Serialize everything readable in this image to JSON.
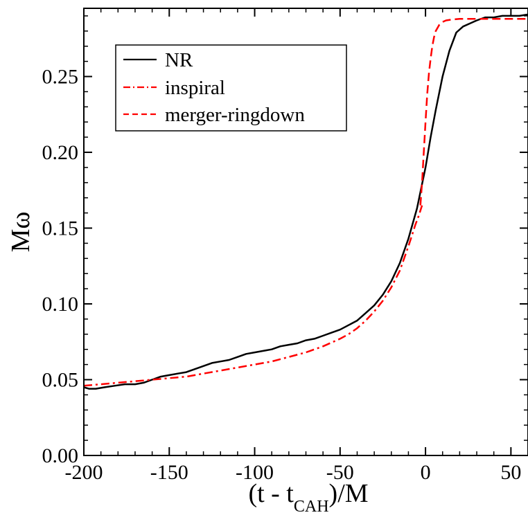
{
  "chart_data": {
    "type": "line",
    "title": "",
    "xlabel": {
      "prefix": "(t - t",
      "subscript": "CAH",
      "suffix": ")/M"
    },
    "ylabel": "Mω",
    "xlim": [
      -200,
      60
    ],
    "ylim": [
      0.0,
      0.295
    ],
    "xticks": [
      -200,
      -150,
      -100,
      -50,
      0,
      50
    ],
    "xtick_labels": [
      "-200",
      "-150",
      "-100",
      "-50",
      "0",
      "50"
    ],
    "yticks": [
      0.0,
      0.05,
      0.1,
      0.15,
      0.2,
      0.25
    ],
    "ytick_labels": [
      "0.00",
      "0.05",
      "0.10",
      "0.15",
      "0.20",
      "0.25"
    ],
    "grid": false,
    "legend_position": "top-left",
    "series": [
      {
        "name": "NR",
        "color": "#000000",
        "dash": "solid",
        "x": [
          -200,
          -197,
          -193,
          -188,
          -182,
          -176,
          -170,
          -165,
          -160,
          -155,
          -150,
          -145,
          -140,
          -135,
          -130,
          -125,
          -120,
          -115,
          -110,
          -105,
          -100,
          -95,
          -90,
          -85,
          -80,
          -75,
          -70,
          -65,
          -60,
          -55,
          -50,
          -45,
          -40,
          -35,
          -30,
          -25,
          -20,
          -15,
          -10,
          -5,
          0,
          3,
          6,
          10,
          14,
          18,
          22,
          26,
          30,
          35,
          40,
          45,
          50,
          55,
          60
        ],
        "y": [
          0.045,
          0.044,
          0.044,
          0.045,
          0.046,
          0.047,
          0.047,
          0.048,
          0.05,
          0.052,
          0.053,
          0.054,
          0.055,
          0.057,
          0.059,
          0.061,
          0.062,
          0.063,
          0.065,
          0.067,
          0.068,
          0.069,
          0.07,
          0.072,
          0.073,
          0.074,
          0.076,
          0.077,
          0.079,
          0.081,
          0.083,
          0.086,
          0.089,
          0.094,
          0.099,
          0.106,
          0.115,
          0.127,
          0.143,
          0.163,
          0.19,
          0.21,
          0.228,
          0.25,
          0.267,
          0.279,
          0.283,
          0.285,
          0.287,
          0.289,
          0.289,
          0.29,
          0.29,
          0.29,
          0.291
        ]
      },
      {
        "name": "inspiral",
        "color": "#ff0000",
        "dash": "dashdot",
        "x": [
          -200,
          -190,
          -180,
          -170,
          -160,
          -150,
          -140,
          -130,
          -120,
          -110,
          -100,
          -90,
          -80,
          -70,
          -60,
          -50,
          -45,
          -40,
          -35,
          -30,
          -25,
          -20,
          -15,
          -10,
          -8,
          -6,
          -4,
          -2
        ],
        "y": [
          0.046,
          0.047,
          0.048,
          0.049,
          0.05,
          0.051,
          0.052,
          0.054,
          0.056,
          0.058,
          0.06,
          0.062,
          0.065,
          0.068,
          0.072,
          0.077,
          0.08,
          0.084,
          0.089,
          0.095,
          0.102,
          0.111,
          0.122,
          0.138,
          0.145,
          0.152,
          0.158,
          0.165
        ]
      },
      {
        "name": "merger-ringdown",
        "color": "#ff0000",
        "dash": "dashed",
        "x": [
          -3,
          -2,
          -1,
          0,
          1,
          2,
          3,
          4,
          5,
          6,
          8,
          10,
          12,
          15,
          20,
          25,
          30,
          40,
          50,
          60
        ],
        "y": [
          0.165,
          0.18,
          0.2,
          0.22,
          0.238,
          0.252,
          0.262,
          0.27,
          0.276,
          0.28,
          0.284,
          0.286,
          0.287,
          0.2875,
          0.288,
          0.288,
          0.288,
          0.288,
          0.288,
          0.288
        ]
      }
    ]
  }
}
